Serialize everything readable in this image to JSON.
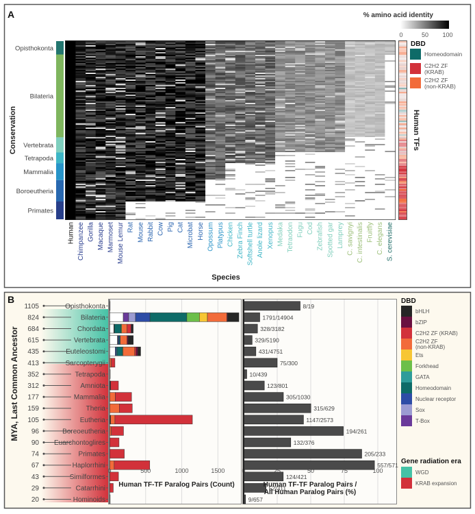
{
  "panel_a": {
    "label": "A",
    "legend_title": "% amino acid identity",
    "legend_ticks": [
      "0",
      "50",
      "100"
    ],
    "conservation_label": "Conservation",
    "species_label": "Species",
    "human_tfs_label": "Human TFs",
    "dbd_title": "DBD",
    "dbd_items": [
      {
        "label": "Homeodomain",
        "color": "#0e6b68"
      },
      {
        "label": "C2H2 ZF\n(KRAB)",
        "label1": "C2H2 ZF",
        "label2": "(KRAB)",
        "color": "#d2313a"
      },
      {
        "label": "C2H2 ZF\n(non-KRAB)",
        "label1": "C2H2 ZF",
        "label2": "(non-KRAB)",
        "color": "#f26b3a"
      }
    ],
    "conservation_groups": [
      {
        "label": "Opisthokonta",
        "color": "#23766f",
        "fraction": 0.075
      },
      {
        "label": "Bilateria",
        "color": "#7fb55e",
        "fraction": 0.465
      },
      {
        "label": "Vertebrata",
        "color": "#7fcfbe",
        "fraction": 0.085
      },
      {
        "label": "Tetrapoda",
        "color": "#3db6c6",
        "fraction": 0.06
      },
      {
        "label": "Mammalia",
        "color": "#2794c8",
        "fraction": 0.095
      },
      {
        "label": "Boroeutheria",
        "color": "#2868b0",
        "fraction": 0.12
      },
      {
        "label": "Primates",
        "color": "#283f8a",
        "fraction": 0.1
      }
    ],
    "species": [
      {
        "name": "Human",
        "color": "#111111"
      },
      {
        "name": "Chimpanzee",
        "color": "#2b3f8f"
      },
      {
        "name": "Gorilla",
        "color": "#2b3f8f"
      },
      {
        "name": "Macaque",
        "color": "#2b3f8f"
      },
      {
        "name": "Marmoset",
        "color": "#2b3f8f"
      },
      {
        "name": "Mouse Lemur",
        "color": "#2b3f8f"
      },
      {
        "name": "Rat",
        "color": "#2c66b0"
      },
      {
        "name": "Mouse",
        "color": "#2c66b0"
      },
      {
        "name": "Rabbit",
        "color": "#2c66b0"
      },
      {
        "name": "Cow",
        "color": "#2c66b0"
      },
      {
        "name": "Pig",
        "color": "#2c66b0"
      },
      {
        "name": "Cat",
        "color": "#2c66b0"
      },
      {
        "name": "Microbat",
        "color": "#2c66b0"
      },
      {
        "name": "Horse",
        "color": "#2c66b0"
      },
      {
        "name": "Opossum",
        "color": "#2a93c8"
      },
      {
        "name": "Platypus",
        "color": "#2a93c8"
      },
      {
        "name": "Chicken",
        "color": "#3fb5c6"
      },
      {
        "name": "Zebra Finch",
        "color": "#3fb5c6"
      },
      {
        "name": "Softshell turtle",
        "color": "#3fb5c6"
      },
      {
        "name": "Anole lizard",
        "color": "#3fb5c6"
      },
      {
        "name": "Xenopus",
        "color": "#3fb5c6"
      },
      {
        "name": "Medaka",
        "color": "#82cfbd"
      },
      {
        "name": "Tetraodon",
        "color": "#82cfbd"
      },
      {
        "name": "Fugu",
        "color": "#82cfbd"
      },
      {
        "name": "Cod",
        "color": "#82cfbd"
      },
      {
        "name": "Zebrafish",
        "color": "#82cfbd"
      },
      {
        "name": "Spotted gar",
        "color": "#82cfbd"
      },
      {
        "name": "Lamprey",
        "color": "#82cfbd"
      },
      {
        "name": "C. savignyi",
        "color": "#9cbf79"
      },
      {
        "name": "C. intestinalis",
        "color": "#9cbf79"
      },
      {
        "name": "Fruitfly",
        "color": "#9cbf79"
      },
      {
        "name": "C. elegans",
        "color": "#9cbf79"
      },
      {
        "name": "S. cerevisiae",
        "color": "#25706b"
      }
    ]
  },
  "panel_b": {
    "label": "B",
    "y_axis_label": "MYA, Last Common Ancestor",
    "count_xlabel": "Human TF-TF Paralog Pairs (Count)",
    "pct_xlabel_line1": "Human TF-TF Paralog Pairs /",
    "pct_xlabel_line2": "All Human Paralog Pairs (%)",
    "dbd_title": "DBD",
    "dbd_legend": [
      {
        "label": "bHLH",
        "color": "#262626"
      },
      {
        "label": "bZIP",
        "color": "#6a1040"
      },
      {
        "label": "C2H2 ZF (KRAB)",
        "color": "#d2313a"
      },
      {
        "label": "C2H2 ZF\n(non-KRAB)",
        "label1": "C2H2 ZF",
        "label2": "(non-KRAB)",
        "color": "#f26b3a"
      },
      {
        "label": "Ets",
        "color": "#f7c634"
      },
      {
        "label": "Forkhead",
        "color": "#6cbf4a"
      },
      {
        "label": "GATA",
        "color": "#2e9c9a"
      },
      {
        "label": "Homeodomain",
        "color": "#0e6b68"
      },
      {
        "label": "Nuclear receptor",
        "color": "#2d4ca6"
      },
      {
        "label": "Sox",
        "color": "#9b9bd2"
      },
      {
        "label": "T-Box",
        "color": "#6a3a9a"
      }
    ],
    "era_title": "Gene radiation era",
    "era_legend": [
      {
        "label": "WGD",
        "color": "#45c2a6"
      },
      {
        "label": "KRAB expansion",
        "color": "#d2313a"
      }
    ]
  },
  "chart_data": [
    {
      "type": "heatmap",
      "title": "",
      "xlabel": "Species",
      "ylabel": "Conservation",
      "colorbar_label": "% amino acid identity",
      "colorbar_range": [
        0,
        100
      ],
      "x_categories": [
        "Human",
        "Chimpanzee",
        "Gorilla",
        "Macaque",
        "Marmoset",
        "Mouse Lemur",
        "Rat",
        "Mouse",
        "Rabbit",
        "Cow",
        "Pig",
        "Cat",
        "Microbat",
        "Horse",
        "Opossum",
        "Platypus",
        "Chicken",
        "Zebra Finch",
        "Softshell turtle",
        "Anole lizard",
        "Xenopus",
        "Medaka",
        "Tetraodon",
        "Fugu",
        "Cod",
        "Zebrafish",
        "Spotted gar",
        "Lamprey",
        "C. savignyi",
        "C. intestinalis",
        "Fruitfly",
        "C. elegans",
        "S. cerevisiae"
      ],
      "y_groups": [
        "Opisthokonta",
        "Bilateria",
        "Vertebrata",
        "Tetrapoda",
        "Mammalia",
        "Boroeutheria",
        "Primates"
      ],
      "right_annotation": "Human TFs (DBD: Homeodomain, C2H2 ZF (KRAB), C2H2 ZF (non-KRAB))"
    },
    {
      "type": "bar",
      "orientation": "horizontal",
      "stacked": true,
      "xlabel": "Human TF-TF Paralog Pairs (Count)",
      "ylabel": "MYA, Last Common Ancestor",
      "xlim": [
        0,
        1800
      ],
      "xticks": [
        "0",
        "500",
        "1000",
        "1500"
      ],
      "categories": [
        "Opisthokonta",
        "Bilateria",
        "Chordata",
        "Vertebrata",
        "Euteleostomi",
        "Sarcopterygii",
        "Tetrapoda",
        "Amniota",
        "Mammalia",
        "Theria",
        "Eutheria",
        "Boreoeutheria",
        "Euarchontoglires",
        "Primates",
        "Haplorrhini",
        "Similformes",
        "Catarrhini",
        "Hominoids"
      ],
      "mya": [
        1105,
        824,
        684,
        615,
        435,
        413,
        352,
        312,
        177,
        159,
        105,
        96,
        90,
        74,
        67,
        43,
        29,
        20
      ],
      "era": [
        "none",
        "WGD",
        "WGD",
        "WGD",
        "WGD",
        "none",
        "none",
        "KRAB",
        "KRAB",
        "KRAB",
        "KRAB",
        "KRAB",
        "KRAB",
        "KRAB",
        "KRAB",
        "KRAB",
        "KRAB",
        "KRAB"
      ],
      "totals": [
        8,
        1791,
        328,
        329,
        431,
        75,
        10,
        123,
        305,
        315,
        1147,
        194,
        132,
        205,
        557,
        124,
        52,
        9
      ],
      "segments": [
        [
          [
            "other",
            8
          ]
        ],
        [
          [
            "other",
            190
          ],
          [
            "T-Box",
            75
          ],
          [
            "Sox",
            95
          ],
          [
            "Nuclear receptor",
            200
          ],
          [
            "Homeodomain",
            510
          ],
          [
            "Forkhead",
            175
          ],
          [
            "Ets",
            110
          ],
          [
            "C2H2 ZF (non-KRAB)",
            270
          ],
          [
            "bZIP",
            10
          ],
          [
            "bHLH",
            156
          ]
        ],
        [
          [
            "other",
            60
          ],
          [
            "bHLH",
            8
          ],
          [
            "Homeodomain",
            90
          ],
          [
            "Forkhead",
            10
          ],
          [
            "C2H2 ZF (non-KRAB)",
            75
          ],
          [
            "C2H2 ZF (KRAB)",
            55
          ],
          [
            "bZIP",
            10
          ],
          [
            "bHLH",
            20
          ]
        ],
        [
          [
            "other",
            110
          ],
          [
            "bHLH",
            8
          ],
          [
            "Nuclear receptor",
            15
          ],
          [
            "Homeodomain",
            15
          ],
          [
            "C2H2 ZF (non-KRAB)",
            95
          ],
          [
            "bZIP",
            15
          ],
          [
            "bHLH",
            71
          ]
        ],
        [
          [
            "other",
            80
          ],
          [
            "Nuclear receptor",
            15
          ],
          [
            "GATA",
            10
          ],
          [
            "Homeodomain",
            75
          ],
          [
            "Ets",
            8
          ],
          [
            "C2H2 ZF (non-KRAB)",
            160
          ],
          [
            "C2H2 ZF (KRAB)",
            20
          ],
          [
            "bZIP",
            23
          ],
          [
            "bHLH",
            40
          ]
        ],
        [
          [
            "C2H2 ZF (non-KRAB)",
            25
          ],
          [
            "C2H2 ZF (KRAB)",
            50
          ]
        ],
        [
          [
            "other",
            10
          ]
        ],
        [
          [
            "bHLH",
            15
          ],
          [
            "C2H2 ZF (KRAB)",
            108
          ]
        ],
        [
          [
            "C2H2 ZF (non-KRAB)",
            80
          ],
          [
            "C2H2 ZF (KRAB)",
            225
          ]
        ],
        [
          [
            "C2H2 ZF (non-KRAB)",
            135
          ],
          [
            "C2H2 ZF (KRAB)",
            180
          ]
        ],
        [
          [
            "bHLH",
            15
          ],
          [
            "C2H2 ZF (non-KRAB)",
            60
          ],
          [
            "C2H2 ZF (KRAB)",
            1072
          ]
        ],
        [
          [
            "C2H2 ZF (non-KRAB)",
            25
          ],
          [
            "C2H2 ZF (KRAB)",
            169
          ]
        ],
        [
          [
            "C2H2 ZF (KRAB)",
            132
          ]
        ],
        [
          [
            "C2H2 ZF (KRAB)",
            205
          ]
        ],
        [
          [
            "C2H2 ZF (non-KRAB)",
            65
          ],
          [
            "C2H2 ZF (KRAB)",
            492
          ]
        ],
        [
          [
            "C2H2 ZF (KRAB)",
            124
          ]
        ],
        [
          [
            "C2H2 ZF (KRAB)",
            52
          ]
        ],
        [
          [
            "other",
            9
          ]
        ]
      ]
    },
    {
      "type": "bar",
      "orientation": "horizontal",
      "xlabel": "Human TF-TF Paralog Pairs / All Human Paralog Pairs (%)",
      "xlim": [
        0,
        100
      ],
      "xticks": [
        "0",
        "25",
        "50",
        "75",
        "100"
      ],
      "categories": [
        "Opisthokonta",
        "Bilateria",
        "Chordata",
        "Vertebrata",
        "Euteleostomi",
        "Sarcopterygii",
        "Tetrapoda",
        "Amniota",
        "Mammalia",
        "Theria",
        "Eutheria",
        "Boreoeutheria",
        "Euarchontoglires",
        "Primates",
        "Haplorrhini",
        "Similformes",
        "Catarrhini",
        "Hominoids"
      ],
      "ratios": [
        "8/19",
        "1791/14904",
        "328/3182",
        "329/5190",
        "431/4751",
        "75/300",
        "10/439",
        "123/801",
        "305/1030",
        "315/629",
        "1147/2573",
        "194/261",
        "132/376",
        "205/233",
        "557/571",
        "124/421",
        "52/311",
        "9/657"
      ],
      "values": [
        42.1,
        12.0,
        10.3,
        6.3,
        9.1,
        25.0,
        2.3,
        15.4,
        29.6,
        50.1,
        44.6,
        74.3,
        35.1,
        88.0,
        97.5,
        29.5,
        16.7,
        1.4
      ]
    }
  ]
}
